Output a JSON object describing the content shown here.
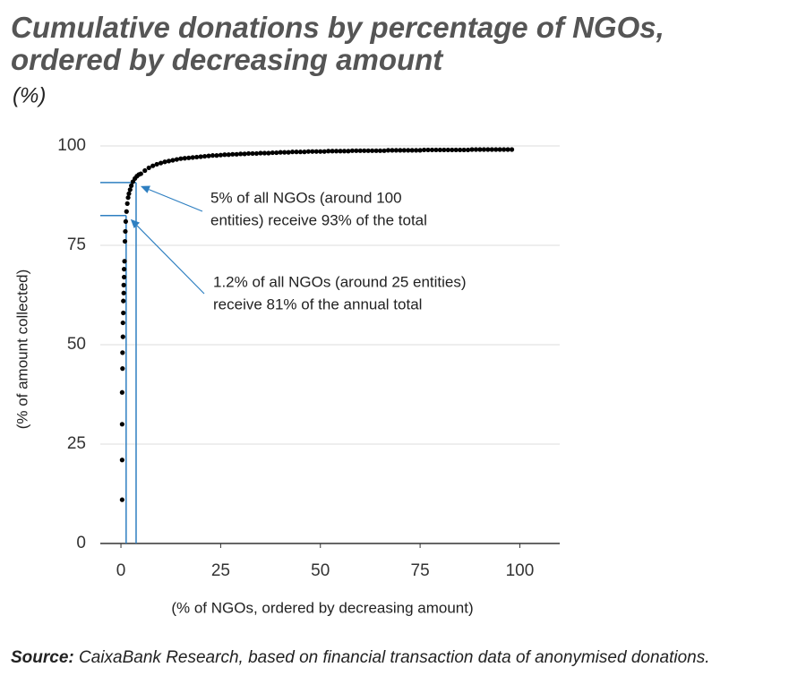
{
  "chart_data": {
    "type": "scatter",
    "title": [
      "Cumulative donations by percentage of NGOs,",
      "ordered by decreasing amount"
    ],
    "subtitle": "(%)",
    "x_label": "(% of NGOs, ordered by decreasing amount)",
    "y_label": "(% of amount collected)",
    "source_label": "Source:",
    "source": "CaixaBank Research, based on financial transaction data of anonymised donations.",
    "color": "#000000",
    "x": [
      0.3,
      0.3,
      0.3,
      0.3,
      0.4,
      0.4,
      0.5,
      0.5,
      0.6,
      0.6,
      0.7,
      0.7,
      0.8,
      0.8,
      0.9,
      1,
      1.1,
      1.2,
      1.4,
      1.6,
      1.8,
      2,
      2.3,
      2.6,
      3,
      3.5,
      4,
      4.5,
      5,
      6,
      7,
      8,
      9,
      10,
      11,
      12,
      13,
      14,
      15,
      16,
      17,
      18,
      19,
      20,
      21,
      22,
      23,
      24,
      25,
      26,
      27,
      28,
      29,
      30,
      31,
      32,
      33,
      34,
      35,
      36,
      37,
      38,
      39,
      40,
      41,
      42,
      43,
      44,
      45,
      46,
      47,
      48,
      49,
      50,
      51,
      52,
      53,
      54,
      55,
      56,
      57,
      58,
      59,
      60,
      61,
      62,
      63,
      64,
      65,
      66,
      67,
      68,
      69,
      70,
      71,
      72,
      73,
      74,
      75,
      76,
      77,
      78,
      79,
      80,
      81,
      82,
      83,
      84,
      85,
      86,
      87,
      88,
      89,
      90,
      91,
      92,
      93,
      94,
      95,
      96,
      97,
      98
    ],
    "values": [
      11,
      21,
      30,
      38,
      44,
      48,
      52,
      55.5,
      58,
      61,
      63,
      65,
      67,
      69,
      71,
      76,
      78.5,
      81,
      83.5,
      85.5,
      87,
      88,
      89,
      90,
      91,
      91.8,
      92.4,
      92.8,
      93,
      93.8,
      94.5,
      95.0,
      95.4,
      95.7,
      96.0,
      96.2,
      96.4,
      96.6,
      96.8,
      96.9,
      97.0,
      97.1,
      97.2,
      97.3,
      97.4,
      97.5,
      97.6,
      97.6,
      97.7,
      97.8,
      97.8,
      97.9,
      97.9,
      98.0,
      98.0,
      98.1,
      98.1,
      98.1,
      98.2,
      98.2,
      98.2,
      98.3,
      98.3,
      98.4,
      98.4,
      98.4,
      98.5,
      98.5,
      98.5,
      98.5,
      98.6,
      98.6,
      98.6,
      98.6,
      98.6,
      98.7,
      98.7,
      98.7,
      98.7,
      98.7,
      98.7,
      98.8,
      98.8,
      98.8,
      98.8,
      98.8,
      98.8,
      98.8,
      98.8,
      98.8,
      98.9,
      98.9,
      98.9,
      98.9,
      98.9,
      98.9,
      98.9,
      98.9,
      98.9,
      99.0,
      99.0,
      99.0,
      99.0,
      99.0,
      99.0,
      99.0,
      99.0,
      99.0,
      99.0,
      99.0,
      99.0,
      99.1,
      99.1,
      99.1,
      99.1,
      99.1,
      99.1,
      99.1,
      99.1,
      99.1,
      99.1,
      99.1
    ],
    "xlim": [
      -4.5,
      110
    ],
    "ylim": [
      0,
      100
    ],
    "xticks": [
      0,
      25,
      50,
      75,
      100
    ],
    "yticks": [
      0,
      25,
      50,
      75,
      100
    ],
    "grid": true,
    "annotation_color": "#2e7fc1",
    "annotations": [
      {
        "text": [
          "5% of all NGOs (around 100",
          "entities) receive 93% of the total"
        ],
        "x": 3.8,
        "y": 90.8
      },
      {
        "text": [
          "1.2% of all NGOs (around 25 entities)",
          "receive 81% of the annual total"
        ],
        "x": 1.3,
        "y": 82.5
      }
    ]
  }
}
